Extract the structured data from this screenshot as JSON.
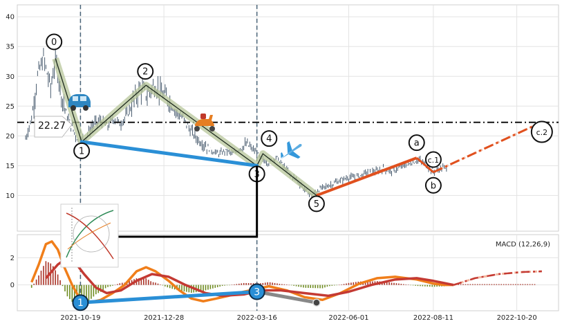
{
  "chart_data": [
    {
      "type": "candlestick",
      "panel": "price",
      "ylim": [
        4,
        42
      ],
      "yticks": [
        10,
        15,
        20,
        25,
        30,
        35,
        40
      ],
      "xlim": [
        "2021-08-27",
        "2022-11-24"
      ],
      "xticks": [
        "2021-10-19",
        "2021-12-28",
        "2022-03-16",
        "2022-06-01",
        "2022-08-11",
        "2022-10-20"
      ],
      "horizontal_line": {
        "value": 22.27,
        "label": "22.27",
        "style": "dash-dot"
      },
      "vertical_lines": [
        "2021-10-19",
        "2022-03-16"
      ],
      "price_path": [
        [
          "2021-09-03",
          19.5
        ],
        [
          "2021-09-08",
          23
        ],
        [
          "2021-09-13",
          30
        ],
        [
          "2021-09-18",
          33
        ],
        [
          "2021-09-24",
          28
        ],
        [
          "2021-09-28",
          33
        ],
        [
          "2021-10-03",
          27
        ],
        [
          "2021-10-08",
          23
        ],
        [
          "2021-10-13",
          21
        ],
        [
          "2021-10-18",
          18.8
        ],
        [
          "2021-10-24",
          20
        ],
        [
          "2021-10-30",
          22
        ],
        [
          "2021-11-05",
          22.5
        ],
        [
          "2021-11-10",
          21.5
        ],
        [
          "2021-11-16",
          23
        ],
        [
          "2021-11-21",
          22
        ],
        [
          "2021-11-27",
          23.5
        ],
        [
          "2021-12-03",
          26
        ],
        [
          "2021-12-08",
          28
        ],
        [
          "2021-12-14",
          27
        ],
        [
          "2021-12-20",
          28.5
        ],
        [
          "2021-12-26",
          27
        ],
        [
          "2022-01-01",
          26
        ],
        [
          "2022-01-07",
          24
        ],
        [
          "2022-01-13",
          23
        ],
        [
          "2022-01-19",
          21
        ],
        [
          "2022-01-25",
          19.5
        ],
        [
          "2022-01-31",
          18.5
        ],
        [
          "2022-02-06",
          17.5
        ],
        [
          "2022-02-12",
          17
        ],
        [
          "2022-02-18",
          17.5
        ],
        [
          "2022-02-24",
          17
        ],
        [
          "2022-03-02",
          18
        ],
        [
          "2022-03-08",
          18.5
        ],
        [
          "2022-03-14",
          17.5
        ],
        [
          "2022-03-20",
          16
        ],
        [
          "2022-03-26",
          15.5
        ],
        [
          "2022-04-01",
          16.5
        ],
        [
          "2022-04-07",
          15
        ],
        [
          "2022-04-13",
          13.5
        ],
        [
          "2022-04-19",
          12.5
        ],
        [
          "2022-04-25",
          11
        ],
        [
          "2022-05-01",
          10
        ],
        [
          "2022-05-07",
          11
        ],
        [
          "2022-05-13",
          11.5
        ],
        [
          "2022-05-19",
          12
        ],
        [
          "2022-05-25",
          12.5
        ],
        [
          "2022-05-31",
          13
        ],
        [
          "2022-06-06",
          13
        ],
        [
          "2022-06-12",
          13.5
        ],
        [
          "2022-06-18",
          14
        ],
        [
          "2022-06-24",
          14
        ],
        [
          "2022-06-30",
          14.5
        ],
        [
          "2022-07-06",
          14
        ],
        [
          "2022-07-12",
          14.5
        ],
        [
          "2022-07-18",
          15
        ],
        [
          "2022-07-24",
          15.5
        ],
        [
          "2022-07-30",
          16
        ],
        [
          "2022-08-05",
          15
        ],
        [
          "2022-08-11",
          14
        ],
        [
          "2022-08-17",
          14.5
        ],
        [
          "2022-08-22",
          14.8
        ]
      ],
      "elliott_waves": [
        {
          "label": "0",
          "date": "2021-09-28",
          "price": 33
        },
        {
          "label": "1",
          "date": "2021-10-20",
          "price": 19
        },
        {
          "label": "2",
          "date": "2021-12-13",
          "price": 28.5
        },
        {
          "label": "3",
          "date": "2022-03-16",
          "price": 15
        },
        {
          "label": "4",
          "date": "2022-03-21",
          "price": 17
        },
        {
          "label": "5",
          "date": "2022-05-05",
          "price": 10
        },
        {
          "label": "a",
          "date": "2022-07-28",
          "price": 16.3
        },
        {
          "label": "b",
          "date": "2022-08-11",
          "price": 13.9
        },
        {
          "label": "c.1",
          "date": "2022-08-11",
          "price": 14.4
        },
        {
          "label": "c.2",
          "date": "2022-11-10",
          "price": 22.3
        }
      ],
      "trendline": {
        "from": [
          "2021-10-20",
          19
        ],
        "to": [
          "2022-03-16",
          15
        ]
      },
      "projection": [
        [
          "2022-05-05",
          10
        ],
        [
          "2022-07-28",
          16.3
        ],
        [
          "2022-08-11",
          13.9
        ],
        [
          "2022-11-10",
          22.3
        ]
      ]
    },
    {
      "type": "line",
      "panel": "macd",
      "title": "MACD (12,26,9)",
      "ylim": [
        -1.9,
        3.7
      ],
      "yticks": [
        0,
        2
      ],
      "series": [
        {
          "color": "#f07e1a",
          "values": [
            [
              "2021-09-08",
              0.2
            ],
            [
              "2021-09-14",
              1.5
            ],
            [
              "2021-09-20",
              3.0
            ],
            [
              "2021-09-25",
              3.2
            ],
            [
              "2021-09-30",
              2.6
            ],
            [
              "2021-10-05",
              1.4
            ],
            [
              "2021-10-12",
              0.0
            ],
            [
              "2021-10-19",
              -1.1
            ],
            [
              "2021-10-26",
              -1.3
            ],
            [
              "2021-11-05",
              -1.1
            ],
            [
              "2021-11-15",
              -0.6
            ],
            [
              "2021-11-25",
              0.0
            ],
            [
              "2021-12-05",
              1.0
            ],
            [
              "2021-12-13",
              1.3
            ],
            [
              "2021-12-21",
              1.0
            ],
            [
              "2022-01-01",
              0.3
            ],
            [
              "2022-01-10",
              -0.4
            ],
            [
              "2022-01-20",
              -1.0
            ],
            [
              "2022-01-30",
              -1.2
            ],
            [
              "2022-02-10",
              -1.0
            ],
            [
              "2022-02-20",
              -0.8
            ],
            [
              "2022-03-05",
              -0.5
            ],
            [
              "2022-03-16",
              -0.3
            ],
            [
              "2022-03-26",
              -0.1
            ],
            [
              "2022-04-10",
              -0.4
            ],
            [
              "2022-04-25",
              -0.9
            ],
            [
              "2022-05-10",
              -1.1
            ],
            [
              "2022-05-25",
              -0.6
            ],
            [
              "2022-06-10",
              0.1
            ],
            [
              "2022-06-25",
              0.5
            ],
            [
              "2022-07-10",
              0.6
            ],
            [
              "2022-07-28",
              0.4
            ],
            [
              "2022-08-11",
              0.1
            ],
            [
              "2022-08-20",
              0.0
            ],
            [
              "2022-08-28",
              0.0
            ]
          ]
        },
        {
          "color": "#c43a33",
          "values": [
            [
              "2021-09-20",
              0.5
            ],
            [
              "2021-09-30",
              1.5
            ],
            [
              "2021-10-08",
              2.0
            ],
            [
              "2021-10-15",
              1.6
            ],
            [
              "2021-10-22",
              0.8
            ],
            [
              "2021-11-01",
              -0.2
            ],
            [
              "2021-11-10",
              -0.6
            ],
            [
              "2021-11-22",
              -0.4
            ],
            [
              "2021-12-05",
              0.3
            ],
            [
              "2021-12-18",
              0.8
            ],
            [
              "2022-01-01",
              0.6
            ],
            [
              "2022-01-15",
              0.0
            ],
            [
              "2022-02-01",
              -0.6
            ],
            [
              "2022-02-15",
              -0.8
            ],
            [
              "2022-03-05",
              -0.7
            ],
            [
              "2022-03-20",
              -0.4
            ],
            [
              "2022-04-05",
              -0.4
            ],
            [
              "2022-04-25",
              -0.6
            ],
            [
              "2022-05-15",
              -0.8
            ],
            [
              "2022-06-01",
              -0.5
            ],
            [
              "2022-06-20",
              0.0
            ],
            [
              "2022-07-10",
              0.4
            ],
            [
              "2022-07-28",
              0.5
            ],
            [
              "2022-08-11",
              0.3
            ],
            [
              "2022-08-28",
              0.0
            ]
          ]
        }
      ],
      "projection": [
        [
          "2022-08-28",
          0.0
        ],
        [
          "2022-09-15",
          0.5
        ],
        [
          "2022-10-05",
          0.8
        ],
        [
          "2022-10-25",
          0.95
        ],
        [
          "2022-11-10",
          1.0
        ]
      ]
    }
  ]
}
